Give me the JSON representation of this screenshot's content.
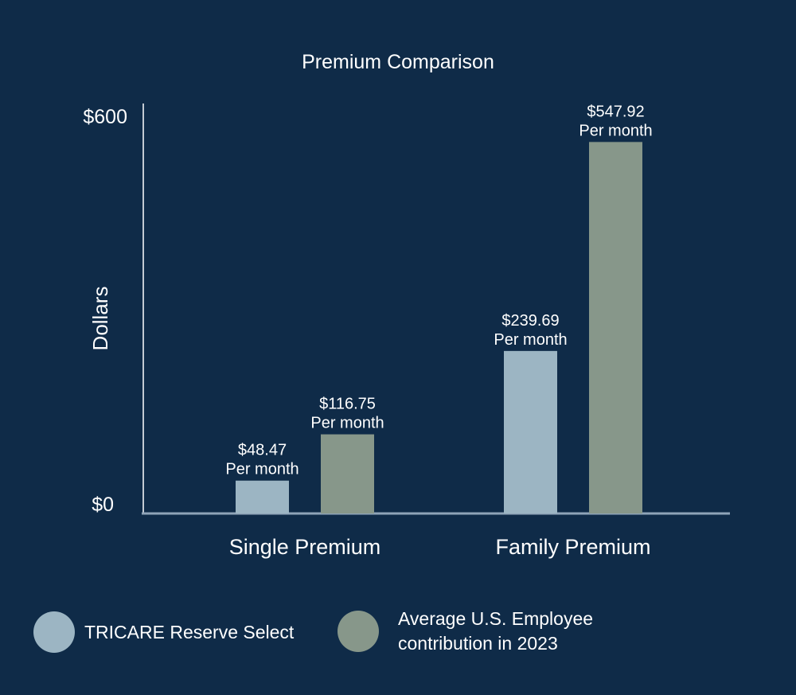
{
  "chart_data": {
    "type": "bar",
    "title": "Premium Comparison",
    "ylabel": "Dollars",
    "xlabel": "",
    "ylim": [
      0,
      600
    ],
    "yticks": [
      "$0",
      "$600"
    ],
    "categories": [
      "Single Premium",
      "Family Premium"
    ],
    "series": [
      {
        "name": "TRICARE Reserve Select",
        "values": [
          48.47,
          239.69
        ],
        "labels": [
          "$48.47",
          "$239.69"
        ],
        "color": "#9cb5c3"
      },
      {
        "name": "Average U.S. Employee contribution in 2023",
        "values": [
          116.75,
          547.92
        ],
        "labels": [
          "$116.75",
          "$547.92"
        ],
        "color": "#87978a"
      }
    ],
    "label_suffix": "Per month",
    "grid": false,
    "legend_position": "bottom"
  },
  "legend": {
    "item1": "TRICARE Reserve Select",
    "item2_line1": "Average U.S. Employee",
    "item2_line2": "contribution in 2023"
  },
  "colors": {
    "background": "#0f2b48",
    "axis": "#8fa4b8"
  }
}
